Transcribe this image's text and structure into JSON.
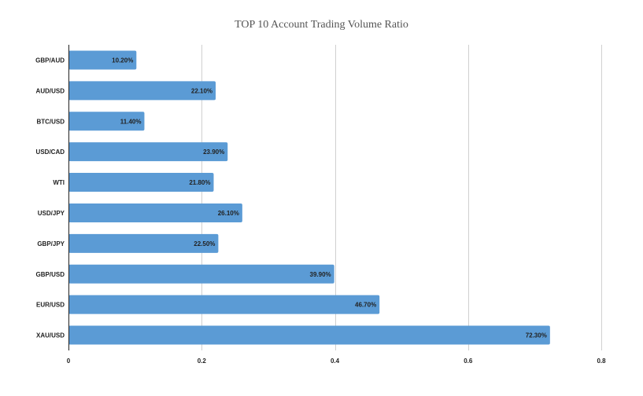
{
  "chart_data": {
    "type": "bar",
    "orientation": "horizontal",
    "title": "TOP 10 Account Trading Volume Ratio",
    "xlabel": "",
    "ylabel": "",
    "categories": [
      "GBP/AUD",
      "AUD/USD",
      "BTC/USD",
      "USD/CAD",
      "WTI",
      "USD/JPY",
      "GBP/JPY",
      "GBP/USD",
      "EUR/USD",
      "XAU/USD"
    ],
    "values": [
      0.102,
      0.221,
      0.114,
      0.239,
      0.218,
      0.261,
      0.225,
      0.399,
      0.467,
      0.723
    ],
    "data_labels": [
      "10.20%",
      "22.10%",
      "11.40%",
      "23.90%",
      "21.80%",
      "26.10%",
      "22.50%",
      "39.90%",
      "46.70%",
      "72.30%"
    ],
    "xlim": [
      0,
      0.8
    ],
    "xticks": [
      0,
      0.2,
      0.4,
      0.6,
      0.8
    ],
    "xtick_labels": [
      "0",
      "0.2",
      "0.4",
      "0.6",
      "0.8"
    ],
    "grid": "vertical",
    "legend": "none",
    "bar_color": "#5b9bd5",
    "grid_color": "#d0d0d0",
    "axis_color": "#222222"
  }
}
